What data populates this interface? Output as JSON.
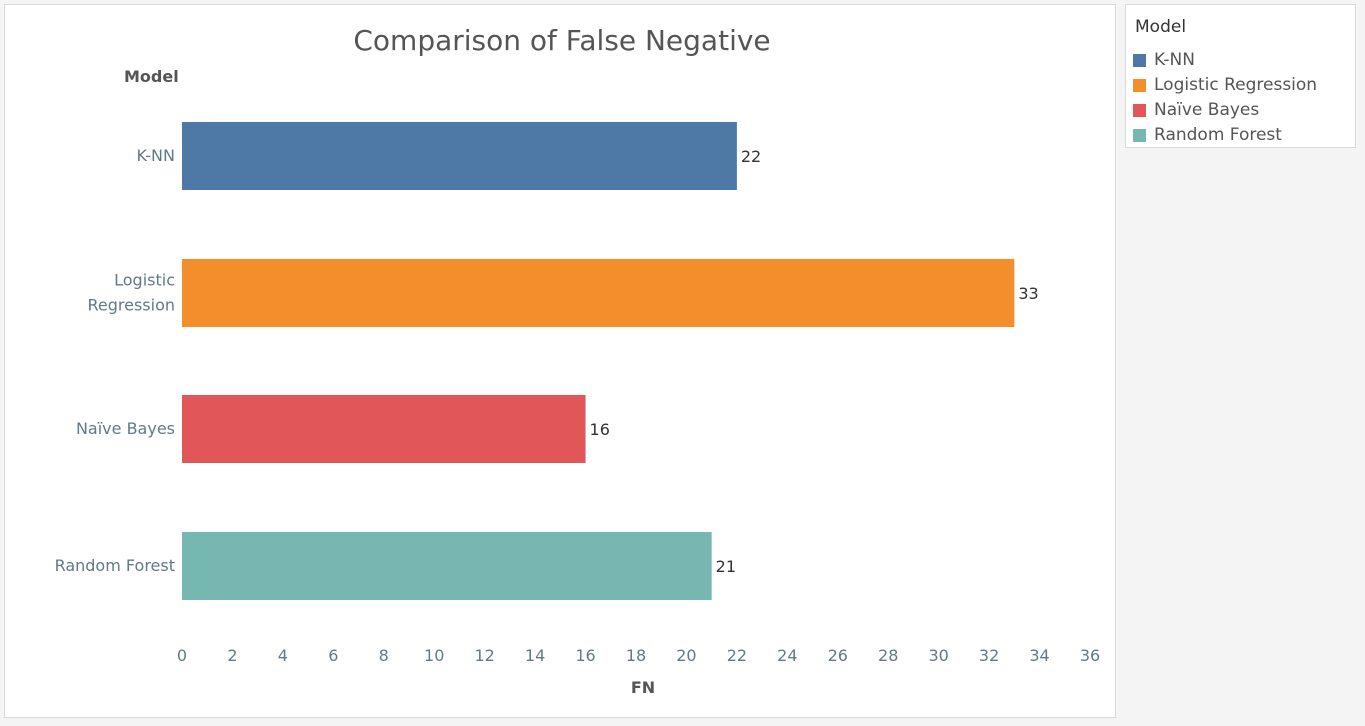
{
  "chart_data": {
    "type": "bar",
    "orientation": "horizontal",
    "title": "Comparison of False Negative",
    "ylabel": "Model",
    "xlabel": "FN",
    "categories": [
      "K-NN",
      "Logistic\nRegression",
      "Naïve Bayes",
      "Random Forest"
    ],
    "values": [
      22,
      33,
      16,
      21
    ],
    "colors": [
      "#4e79a7",
      "#f28e2b",
      "#e15759",
      "#76b7b2"
    ],
    "xlim": [
      0,
      36
    ],
    "xticks": [
      "0",
      "2",
      "4",
      "6",
      "8",
      "10",
      "12",
      "14",
      "16",
      "18",
      "20",
      "22",
      "24",
      "26",
      "28",
      "30",
      "32",
      "34",
      "36"
    ],
    "grid": false,
    "legend_position": "right"
  },
  "legend": {
    "title": "Model",
    "items": [
      {
        "label": "K-NN",
        "color": "#4e79a7"
      },
      {
        "label": "Logistic Regression",
        "color": "#f28e2b"
      },
      {
        "label": "Naïve Bayes",
        "color": "#e15759"
      },
      {
        "label": "Random Forest",
        "color": "#76b7b2"
      }
    ]
  }
}
